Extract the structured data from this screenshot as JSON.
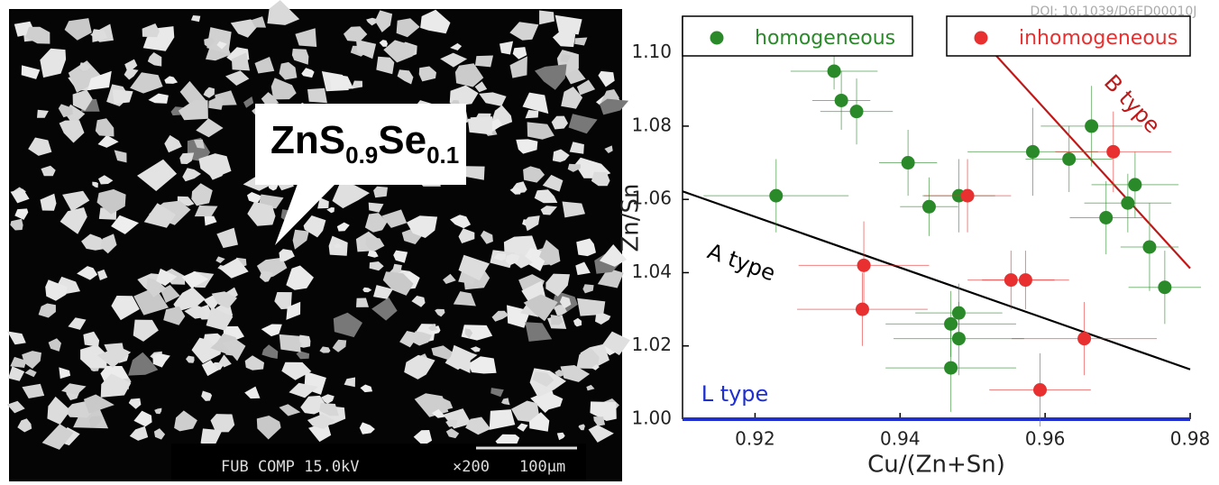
{
  "doi": "DOI: 10.1039/D6FD00010J",
  "micrograph": {
    "callout": {
      "parts": [
        "ZnS",
        "0.9",
        "Se",
        "0.1"
      ]
    },
    "info": "FUB COMP  15.0kV",
    "magnification": "×200",
    "scale": "100μm"
  },
  "chart_data": {
    "type": "scatter",
    "x_label": "Cu/(Zn+Sn)",
    "y_label": "Zn/Sn",
    "xlim": [
      0.91,
      0.98
    ],
    "xticks": [
      0.92,
      0.94,
      0.96,
      0.98
    ],
    "ylim": [
      1.0,
      1.11
    ],
    "yticks": [
      {
        "value": 1.0,
        "label": "1.00"
      },
      1.02,
      1.04,
      1.06,
      1.08,
      {
        "value": 1.1,
        "label": "1.10"
      }
    ],
    "legend": "top",
    "series": [
      {
        "name": "homogeneous",
        "color": "#2a8a2a",
        "x": [
          0.9309,
          0.9319,
          0.934,
          0.9411,
          0.9229,
          0.944,
          0.9481,
          0.9583,
          0.9633,
          0.9664,
          0.9724,
          0.9714,
          0.9684,
          0.9744,
          0.9765,
          0.9481,
          0.947,
          0.9481,
          0.947
        ],
        "values": [
          1.095,
          1.087,
          1.084,
          1.07,
          1.061,
          1.058,
          1.061,
          1.073,
          1.071,
          1.08,
          1.064,
          1.059,
          1.055,
          1.047,
          1.036,
          1.029,
          1.026,
          1.022,
          1.014
        ],
        "x_err": [
          0.006,
          0.004,
          0.005,
          0.004,
          0.01,
          0.004,
          0.005,
          0.009,
          0.006,
          0.007,
          0.006,
          0.006,
          0.005,
          0.004,
          0.005,
          0.006,
          0.009,
          0.009,
          0.009
        ],
        "y_err": [
          0.005,
          0.008,
          0.009,
          0.009,
          0.01,
          0.008,
          0.01,
          0.012,
          0.009,
          0.011,
          0.009,
          0.008,
          0.01,
          0.012,
          0.01,
          0.008,
          0.009,
          0.01,
          0.012
        ]
      },
      {
        "name": "inhomogeneous",
        "color": "#e83030",
        "x": [
          0.9493,
          0.9694,
          0.935,
          0.9348,
          0.9553,
          0.9573,
          0.9654,
          0.9593
        ],
        "values": [
          1.061,
          1.073,
          1.042,
          1.03,
          1.038,
          1.038,
          1.022,
          1.008
        ],
        "x_err": [
          0.006,
          0.008,
          0.009,
          0.009,
          0.006,
          0.006,
          0.01,
          0.007
        ],
        "y_err": [
          0.01,
          0.011,
          0.012,
          0.01,
          0.008,
          0.008,
          0.01,
          0.01
        ]
      }
    ],
    "lines": [
      {
        "label": "A type",
        "color": "#000000",
        "x": [
          0.91,
          0.98
        ],
        "y": [
          1.0622,
          1.0136
        ]
      },
      {
        "label": "B type",
        "color": "#c01818",
        "x": [
          0.9529,
          0.98
        ],
        "y": [
          1.1,
          1.0412
        ]
      },
      {
        "label": "L type",
        "color": "#2030d0",
        "x": [
          0.91,
          0.98
        ],
        "y": [
          1.0,
          1.0
        ]
      }
    ]
  }
}
